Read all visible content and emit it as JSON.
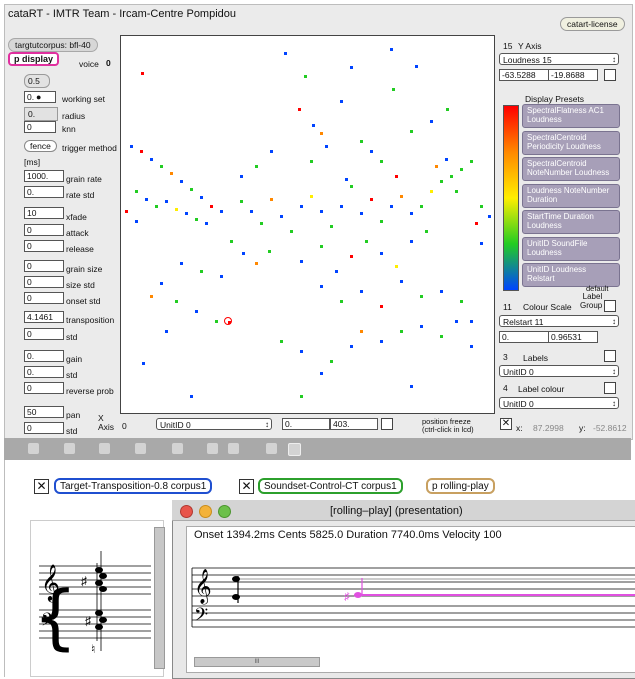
{
  "window": {
    "title": "cataRT - IMTR Team - Ircam-Centre Pompidou",
    "license_btn": "catart-license"
  },
  "left": {
    "corpus": "targtutcorpus: bfl-40",
    "p_display": "p display",
    "voice_label": "voice",
    "voice_val": "0",
    "half": "0.5",
    "working_set_val": "0.",
    "working_set_label": "working set",
    "radius_val": "0.",
    "radius_label": "radius",
    "knn_val": "0",
    "knn_label": "knn",
    "fence": "fence",
    "trigger_label": "trigger method",
    "ms": "[ms]",
    "grain_rate_val": "1000.",
    "grain_rate_label": "grain rate",
    "rate_std_val": "0.",
    "rate_std_label": "rate std",
    "xfade_val": "10",
    "xfade_label": "xfade",
    "attack_val": "0",
    "attack_label": "attack",
    "release_val": "0",
    "release_label": "release",
    "grain_size_val": "0",
    "grain_size_label": "grain size",
    "size_std_val": "0",
    "size_std_label": "size std",
    "onset_std_val": "0",
    "onset_std_label": "onset std",
    "transp_val": "4.1461",
    "transp_label": "transposition",
    "std1_val": "0",
    "std1_label": "std",
    "gain_val": "0.",
    "gain_label": "gain",
    "std2_val": "0.",
    "std2_label": "std",
    "rev_val": "0",
    "rev_label": "reverse prob",
    "pan_val": "50",
    "pan_label": "pan",
    "std3_val": "0",
    "std3_label": "std"
  },
  "bottom": {
    "x_axis": "X\nAxis",
    "x_num": "0",
    "x_menu": "UnitID 0",
    "min": "0.",
    "max": "403.",
    "freeze": "position freeze\n(ctrl-click in lcd)",
    "x_label": "x:",
    "x_val": "87.2998",
    "y_label": "y:",
    "y_val": "-52.8612"
  },
  "right": {
    "y_num": "15",
    "y_axis": "Y Axis",
    "y_menu": "Loudness 15",
    "y_min": "-63.5288",
    "y_max": "-19.8688",
    "presets_title": "Display Presets",
    "presets": [
      "SpectralFlatness AC1 Loudness",
      "SpectralCentroid Periodicity Loudness",
      "SpectralCentroid NoteNumber Loudness",
      "Loudness NoteNumber Duration",
      "StartTime Duration Loudness",
      "UnitID SoundFile Loudness",
      "UnitID Loudness Relstart"
    ],
    "default": "default",
    "colour_num": "11",
    "colour_scale": "Colour Scale",
    "label_group": "Label\nGroup",
    "colour_menu": "Relstart 11",
    "c_min": "0.",
    "c_max": "0.96531",
    "labels_num": "3",
    "labels": "Labels",
    "labels_menu": "UnitID 0",
    "lc_num": "4",
    "label_colour": "Label colour",
    "lc_menu": "UnitID 0",
    "gradient": [
      "#ff0000",
      "#ff8800",
      "#ffee00",
      "#22cc22",
      "#0044ff"
    ]
  },
  "patch": {
    "tag1": "Target-Transposition-0.8 corpus1",
    "tag2": "Soundset-Control-CT corpus1",
    "tag3": "p rolling-play",
    "c1": "#1f4fd0",
    "c2": "#2ca02c",
    "c3": "#c8a060"
  },
  "rolling": {
    "title": "[rolling–play] (presentation)",
    "info": "Onset 1394.2ms   Cents 5825.0   Duration 7740.0ms   Velocity 100",
    "scroll": "III"
  },
  "scatter": [
    [
      141,
      72,
      "#ff0000"
    ],
    [
      284,
      52,
      "#0044ff"
    ],
    [
      304,
      75,
      "#22cc22"
    ],
    [
      340,
      100,
      "#0044ff"
    ],
    [
      350,
      66,
      "#0044ff"
    ],
    [
      390,
      48,
      "#0044ff"
    ],
    [
      392,
      88,
      "#22cc22"
    ],
    [
      415,
      65,
      "#0044ff"
    ],
    [
      312,
      124,
      "#0044ff"
    ],
    [
      320,
      132,
      "#ff8800"
    ],
    [
      298,
      108,
      "#ff0000"
    ],
    [
      360,
      140,
      "#22cc22"
    ],
    [
      430,
      120,
      "#0044ff"
    ],
    [
      446,
      108,
      "#22cc22"
    ],
    [
      130,
      145,
      "#0044ff"
    ],
    [
      140,
      150,
      "#ff0000"
    ],
    [
      150,
      158,
      "#0044ff"
    ],
    [
      160,
      165,
      "#22cc22"
    ],
    [
      170,
      172,
      "#ff8800"
    ],
    [
      180,
      180,
      "#0044ff"
    ],
    [
      190,
      188,
      "#22cc22"
    ],
    [
      200,
      196,
      "#0044ff"
    ],
    [
      210,
      205,
      "#ff0000"
    ],
    [
      220,
      210,
      "#0044ff"
    ],
    [
      185,
      212,
      "#0044ff"
    ],
    [
      195,
      218,
      "#22cc22"
    ],
    [
      205,
      222,
      "#0044ff"
    ],
    [
      175,
      208,
      "#ffee00"
    ],
    [
      165,
      200,
      "#0044ff"
    ],
    [
      155,
      205,
      "#22cc22"
    ],
    [
      145,
      198,
      "#0044ff"
    ],
    [
      125,
      210,
      "#ff0000"
    ],
    [
      135,
      220,
      "#0044ff"
    ],
    [
      240,
      200,
      "#22cc22"
    ],
    [
      250,
      210,
      "#0044ff"
    ],
    [
      260,
      222,
      "#22cc22"
    ],
    [
      270,
      198,
      "#ff8800"
    ],
    [
      280,
      215,
      "#0044ff"
    ],
    [
      290,
      230,
      "#22cc22"
    ],
    [
      300,
      205,
      "#0044ff"
    ],
    [
      310,
      195,
      "#ffee00"
    ],
    [
      320,
      210,
      "#0044ff"
    ],
    [
      330,
      225,
      "#22cc22"
    ],
    [
      340,
      205,
      "#0044ff"
    ],
    [
      350,
      185,
      "#22cc22"
    ],
    [
      360,
      212,
      "#0044ff"
    ],
    [
      370,
      198,
      "#ff0000"
    ],
    [
      380,
      220,
      "#22cc22"
    ],
    [
      390,
      205,
      "#0044ff"
    ],
    [
      400,
      195,
      "#ff8800"
    ],
    [
      410,
      212,
      "#0044ff"
    ],
    [
      420,
      205,
      "#22cc22"
    ],
    [
      430,
      190,
      "#ffee00"
    ],
    [
      440,
      180,
      "#22cc22"
    ],
    [
      450,
      175,
      "#22cc22"
    ],
    [
      460,
      168,
      "#22cc22"
    ],
    [
      470,
      160,
      "#22cc22"
    ],
    [
      435,
      165,
      "#ff8800"
    ],
    [
      445,
      158,
      "#0044ff"
    ],
    [
      455,
      190,
      "#22cc22"
    ],
    [
      480,
      205,
      "#22cc22"
    ],
    [
      488,
      215,
      "#0044ff"
    ],
    [
      475,
      222,
      "#ff0000"
    ],
    [
      230,
      240,
      "#22cc22"
    ],
    [
      242,
      252,
      "#0044ff"
    ],
    [
      255,
      262,
      "#ff8800"
    ],
    [
      268,
      250,
      "#22cc22"
    ],
    [
      300,
      260,
      "#0044ff"
    ],
    [
      320,
      245,
      "#22cc22"
    ],
    [
      335,
      270,
      "#0044ff"
    ],
    [
      350,
      255,
      "#ff0000"
    ],
    [
      365,
      240,
      "#22cc22"
    ],
    [
      380,
      252,
      "#0044ff"
    ],
    [
      395,
      265,
      "#ffee00"
    ],
    [
      410,
      240,
      "#0044ff"
    ],
    [
      425,
      230,
      "#22cc22"
    ],
    [
      220,
      275,
      "#0044ff"
    ],
    [
      200,
      270,
      "#22cc22"
    ],
    [
      180,
      262,
      "#0044ff"
    ],
    [
      160,
      282,
      "#0044ff"
    ],
    [
      150,
      295,
      "#ff8800"
    ],
    [
      175,
      300,
      "#22cc22"
    ],
    [
      195,
      310,
      "#0044ff"
    ],
    [
      215,
      320,
      "#22cc22"
    ],
    [
      320,
      285,
      "#0044ff"
    ],
    [
      340,
      300,
      "#22cc22"
    ],
    [
      360,
      290,
      "#0044ff"
    ],
    [
      380,
      305,
      "#ff0000"
    ],
    [
      400,
      280,
      "#0044ff"
    ],
    [
      420,
      295,
      "#22cc22"
    ],
    [
      440,
      290,
      "#0044ff"
    ],
    [
      460,
      300,
      "#22cc22"
    ],
    [
      470,
      320,
      "#0044ff"
    ],
    [
      228,
      321,
      "#ff0000"
    ],
    [
      165,
      330,
      "#0044ff"
    ],
    [
      280,
      340,
      "#22cc22"
    ],
    [
      300,
      350,
      "#0044ff"
    ],
    [
      330,
      360,
      "#22cc22"
    ],
    [
      350,
      345,
      "#0044ff"
    ],
    [
      360,
      330,
      "#ff8800"
    ],
    [
      380,
      340,
      "#0044ff"
    ],
    [
      400,
      330,
      "#22cc22"
    ],
    [
      420,
      325,
      "#0044ff"
    ],
    [
      440,
      335,
      "#22cc22"
    ],
    [
      470,
      345,
      "#0044ff"
    ],
    [
      142,
      362,
      "#0044ff"
    ],
    [
      320,
      372,
      "#0044ff"
    ],
    [
      300,
      395,
      "#22cc22"
    ],
    [
      190,
      395,
      "#0044ff"
    ],
    [
      410,
      385,
      "#0044ff"
    ],
    [
      455,
      320,
      "#0044ff"
    ],
    [
      480,
      242,
      "#0044ff"
    ],
    [
      135,
      190,
      "#22cc22"
    ],
    [
      270,
      150,
      "#0044ff"
    ],
    [
      255,
      165,
      "#22cc22"
    ],
    [
      240,
      175,
      "#0044ff"
    ],
    [
      370,
      150,
      "#0044ff"
    ],
    [
      380,
      160,
      "#22cc22"
    ],
    [
      395,
      175,
      "#ff0000"
    ],
    [
      410,
      130,
      "#22cc22"
    ],
    [
      345,
      178,
      "#0044ff"
    ],
    [
      310,
      160,
      "#22cc22"
    ],
    [
      325,
      145,
      "#0044ff"
    ]
  ]
}
